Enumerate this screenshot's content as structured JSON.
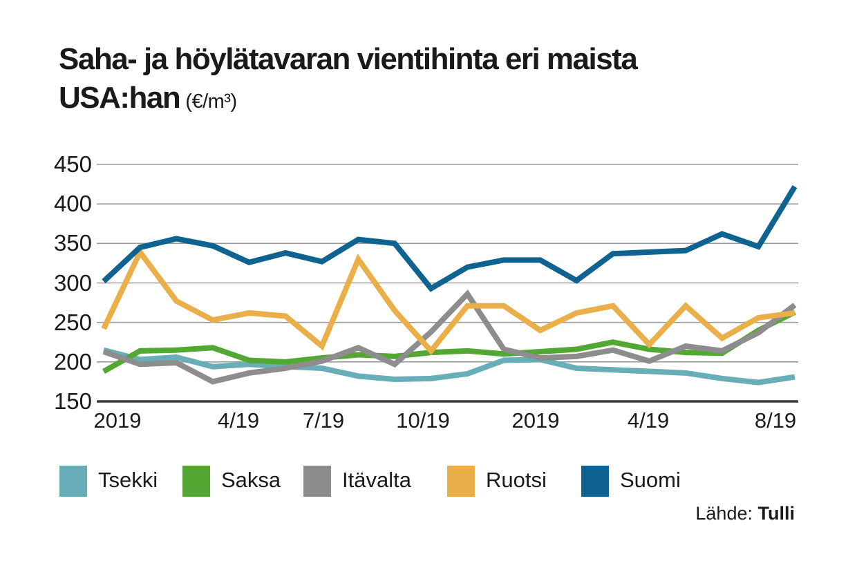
{
  "title": {
    "line1": "Saha- ja höylätavaran vientihinta eri maista",
    "line2": "USA:han",
    "unit": "(€/m³)"
  },
  "source": {
    "label": "Lähde:",
    "value": "Tulli"
  },
  "chart_data": {
    "type": "line",
    "title": "Saha- ja höylätavaran vientihinta eri maista USA:han (€/m³)",
    "ylabel": "€/m³",
    "xlabel": "",
    "ylim": [
      150,
      450
    ],
    "grid": "horizontal",
    "legend_position": "bottom",
    "y_ticks": [
      450,
      400,
      350,
      300,
      250,
      200,
      150
    ],
    "n_points": 20,
    "x_tick_labels": [
      "2019",
      "4/19",
      "7/19",
      "10/19",
      "2019",
      "4/19",
      "8/19"
    ],
    "x_tick_indices": [
      0,
      3,
      6,
      9,
      12,
      15,
      19
    ],
    "series": [
      {
        "name": "Tsekki",
        "color": "#67aeb9",
        "values": [
          215,
          203,
          206,
          194,
          197,
          194,
          192,
          182,
          178,
          179,
          185,
          202,
          203,
          192,
          190,
          188,
          186,
          179,
          174,
          181
        ]
      },
      {
        "name": "Saksa",
        "color": "#53a733",
        "values": [
          188,
          214,
          215,
          218,
          202,
          200,
          205,
          209,
          207,
          212,
          214,
          210,
          213,
          216,
          225,
          216,
          212,
          211,
          240,
          263
        ]
      },
      {
        "name": "Itävalta",
        "color": "#8d8d8d",
        "values": [
          213,
          197,
          199,
          175,
          186,
          192,
          201,
          218,
          197,
          238,
          286,
          216,
          205,
          207,
          215,
          201,
          220,
          214,
          237,
          272
        ]
      },
      {
        "name": "Ruotsi",
        "color": "#eaaf49",
        "values": [
          242,
          339,
          277,
          253,
          262,
          258,
          220,
          330,
          265,
          214,
          271,
          271,
          240,
          262,
          271,
          222,
          271,
          230,
          256,
          262
        ]
      },
      {
        "name": "Suomi",
        "color": "#0f6390",
        "values": [
          302,
          345,
          356,
          347,
          326,
          338,
          327,
          355,
          350,
          293,
          320,
          329,
          329,
          303,
          337,
          339,
          341,
          362,
          346,
          422
        ]
      }
    ],
    "axis_color": "#3b3b3b",
    "gridline_color": "#9b9b9b"
  }
}
